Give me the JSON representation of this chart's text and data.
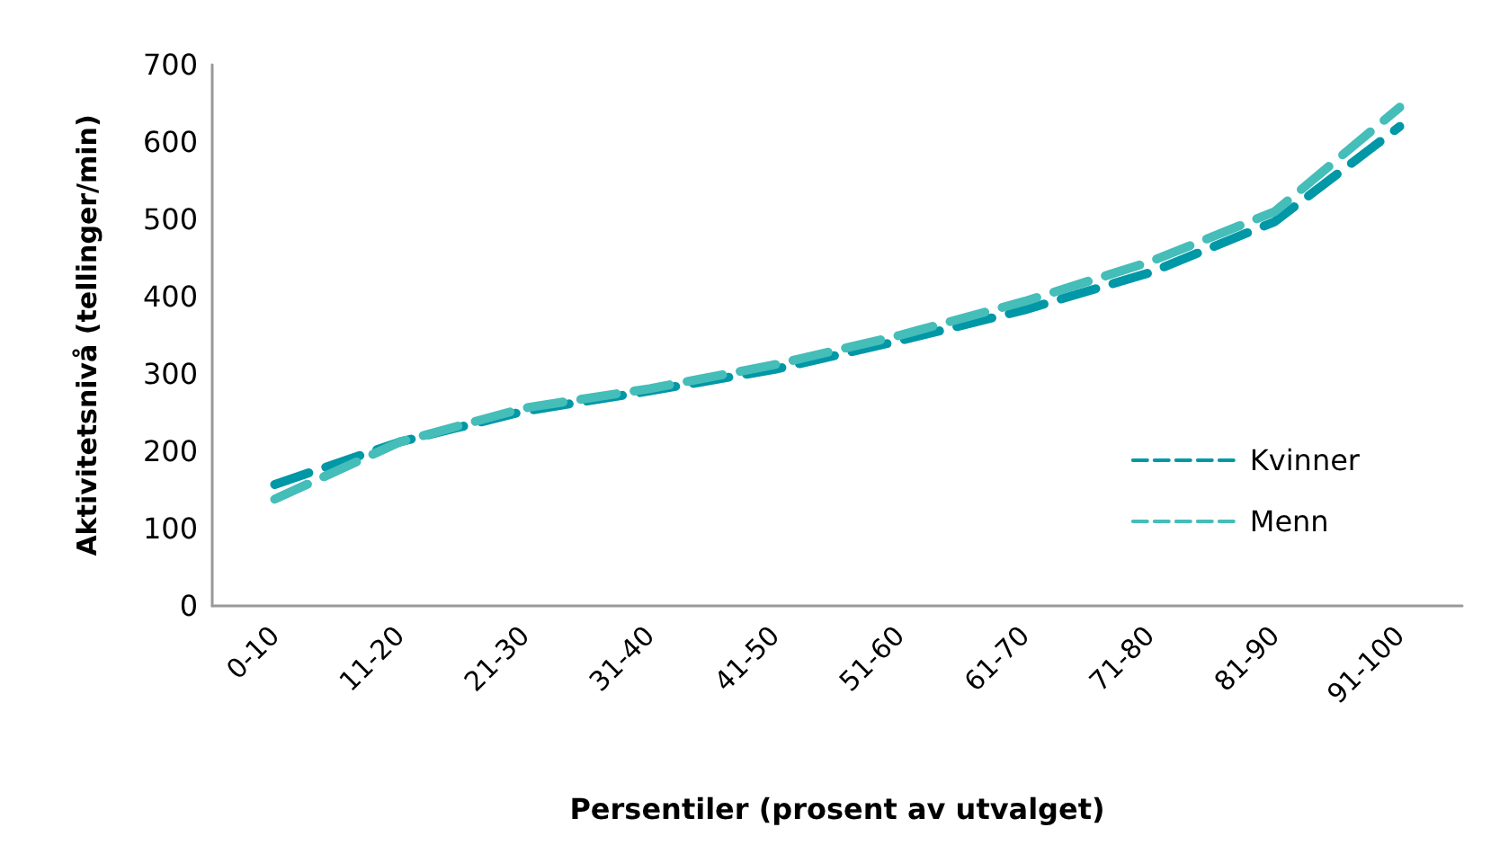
{
  "chart_data": {
    "type": "line",
    "xlabel": "Persentiler (prosent av utvalget)",
    "ylabel": "Aktivitetsnivå (tellinger/min)",
    "categories": [
      "0-10",
      "11-20",
      "21-30",
      "31-40",
      "41-50",
      "51-60",
      "61-70",
      "71-80",
      "81-90",
      "91-100"
    ],
    "series": [
      {
        "name": "Kvinner",
        "color": "#0097a7",
        "values": [
          157,
          212,
          252,
          278,
          306,
          343,
          383,
          431,
          497,
          620
        ]
      },
      {
        "name": "Menn",
        "color": "#45bdb8",
        "values": [
          138,
          212,
          256,
          281,
          312,
          350,
          394,
          445,
          510,
          645
        ]
      }
    ],
    "ylim": [
      0,
      700
    ],
    "yticks": [
      0,
      100,
      200,
      300,
      400,
      500,
      600,
      700
    ],
    "grid": false,
    "legend": "right",
    "marker": "none",
    "line_style": "dashed"
  }
}
